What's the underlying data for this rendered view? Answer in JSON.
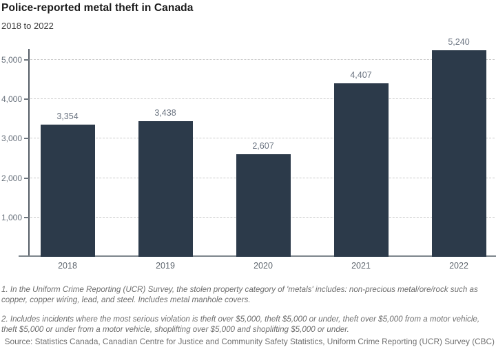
{
  "header": {
    "title": "Police-reported metal theft in Canada",
    "subtitle": "2018 to 2022"
  },
  "chart_data": {
    "type": "bar",
    "title": "Police-reported metal theft in Canada",
    "subtitle": "2018 to 2022",
    "categories": [
      "2018",
      "2019",
      "2020",
      "2021",
      "2022"
    ],
    "values": [
      3354,
      3438,
      2607,
      4407,
      5240
    ],
    "value_labels": [
      "3,354",
      "3,438",
      "2,607",
      "4,407",
      "5,240"
    ],
    "xlabel": "",
    "ylabel": "",
    "ylim": [
      0,
      5500
    ],
    "yticks": [
      1000,
      2000,
      3000,
      4000,
      5000
    ],
    "ytick_labels": [
      "1,000",
      "2,000",
      "3,000",
      "4,000",
      "5,000"
    ],
    "grid": "horizontal-dashed",
    "legend": "none",
    "bar_color": "#2c3a4a"
  },
  "footnotes": {
    "note1": "1. In the Uniform Crime Reporting (UCR) Survey, the stolen property category of 'metals' includes: non-precious metal/ore/rock such as copper, copper wiring, lead, and steel. Includes metal manhole covers.",
    "note2": "2. Includes incidents where the most serious violation is theft over $5,000, theft $5,000 or under, theft over $5,000 from a motor vehicle, theft $5,000 or under from a motor vehicle, shoplifting over $5,000 and shoplifting $5,000 or under.",
    "source": "Source: Statistics Canada, Canadian Centre for Justice and Community Safety Statistics, Uniform Crime Reporting (UCR) Survey (CBC)"
  },
  "colors": {
    "bar": "#2c3a4a",
    "title_text": "#1a1a1a",
    "subtitle_text": "#3d3d3d",
    "axis_label_text": "#666f7a",
    "gridline": "#c9c9c9",
    "y_axis_line": "#555d66",
    "x_axis_line": "#7d858c",
    "footnote_text": "#6e6e6e",
    "background": "#ffffff"
  }
}
